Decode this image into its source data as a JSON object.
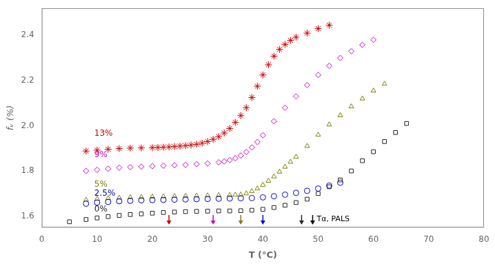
{
  "chart_data": {
    "type": "scatter",
    "xlabel": "T (°C)",
    "ylabel": "fᵥ (%)",
    "xlim": [
      0,
      80
    ],
    "ylim": [
      1.55,
      2.52
    ],
    "xticks": [
      0,
      10,
      20,
      30,
      40,
      50,
      60,
      70,
      80
    ],
    "yticks": [
      1.6,
      1.8,
      {
        "value": 2.0,
        "label": "2.0"
      },
      2.2,
      2.4
    ],
    "grid": false,
    "series": [
      {
        "name": "0%",
        "color": "#222222",
        "marker": "square",
        "x": [
          5,
          8,
          10,
          12,
          14,
          16,
          18,
          20,
          22,
          24,
          26,
          28,
          30,
          32,
          34,
          36,
          38,
          40,
          42,
          44,
          46,
          48,
          50,
          52,
          54,
          56,
          58,
          60,
          62,
          64,
          66
        ],
        "values": [
          1.575,
          1.585,
          1.592,
          1.598,
          1.603,
          1.607,
          1.61,
          1.613,
          1.616,
          1.618,
          1.62,
          1.621,
          1.622,
          1.623,
          1.623,
          1.624,
          1.626,
          1.63,
          1.638,
          1.648,
          1.66,
          1.675,
          1.7,
          1.73,
          1.76,
          1.8,
          1.845,
          1.885,
          1.93,
          1.97,
          2.01
        ]
      },
      {
        "name": "2.5%",
        "color": "#0000cc",
        "marker": "circle",
        "x": [
          8,
          10,
          12,
          14,
          16,
          18,
          20,
          22,
          24,
          26,
          28,
          30,
          32,
          34,
          36,
          38,
          40,
          42,
          44,
          46,
          48,
          50,
          52,
          54
        ],
        "values": [
          1.655,
          1.66,
          1.663,
          1.666,
          1.668,
          1.67,
          1.671,
          1.672,
          1.673,
          1.674,
          1.675,
          1.676,
          1.677,
          1.678,
          1.679,
          1.68,
          1.683,
          1.688,
          1.695,
          1.703,
          1.712,
          1.722,
          1.735,
          1.748
        ]
      },
      {
        "name": "5%",
        "color": "#7f7f00",
        "marker": "triangle",
        "x": [
          8,
          10,
          12,
          14,
          16,
          18,
          20,
          22,
          24,
          26,
          28,
          30,
          32,
          34,
          35,
          36,
          37,
          38,
          39,
          40,
          41,
          42,
          43,
          44,
          45,
          46,
          48,
          50,
          52,
          54,
          56,
          58,
          60,
          62
        ],
        "values": [
          1.672,
          1.676,
          1.679,
          1.681,
          1.683,
          1.684,
          1.686,
          1.687,
          1.688,
          1.689,
          1.69,
          1.691,
          1.692,
          1.693,
          1.694,
          1.695,
          1.7,
          1.71,
          1.722,
          1.738,
          1.756,
          1.775,
          1.796,
          1.818,
          1.84,
          1.862,
          1.91,
          1.96,
          2.005,
          2.046,
          2.085,
          2.12,
          2.155,
          2.185
        ]
      },
      {
        "name": "9%",
        "color": "#cc00cc",
        "marker": "diamond",
        "x": [
          8,
          10,
          12,
          14,
          16,
          18,
          20,
          22,
          24,
          26,
          28,
          30,
          32,
          33,
          34,
          35,
          36,
          37,
          38,
          39,
          40,
          42,
          44,
          46,
          48,
          50,
          52,
          54,
          56,
          58,
          60
        ],
        "values": [
          1.8,
          1.805,
          1.81,
          1.814,
          1.817,
          1.819,
          1.821,
          1.823,
          1.825,
          1.827,
          1.83,
          1.833,
          1.838,
          1.842,
          1.848,
          1.856,
          1.868,
          1.884,
          1.904,
          1.928,
          1.958,
          2.02,
          2.08,
          2.13,
          2.18,
          2.225,
          2.265,
          2.3,
          2.33,
          2.358,
          2.38
        ]
      },
      {
        "name": "13%",
        "color": "#cc0000",
        "marker": "star",
        "x": [
          8,
          10,
          12,
          14,
          16,
          18,
          20,
          21,
          22,
          23,
          24,
          25,
          26,
          27,
          28,
          29,
          30,
          31,
          32,
          33,
          34,
          35,
          36,
          37,
          38,
          39,
          40,
          41,
          42,
          43,
          44,
          45,
          46,
          48,
          50,
          52
        ],
        "values": [
          1.888,
          1.892,
          1.896,
          1.899,
          1.901,
          1.902,
          1.903,
          1.904,
          1.905,
          1.906,
          1.908,
          1.91,
          1.912,
          1.915,
          1.918,
          1.923,
          1.93,
          1.94,
          1.952,
          1.968,
          1.988,
          2.015,
          2.045,
          2.08,
          2.125,
          2.175,
          2.225,
          2.27,
          2.308,
          2.338,
          2.36,
          2.378,
          2.392,
          2.41,
          2.43,
          2.445
        ]
      }
    ],
    "arrows": [
      {
        "x": 23,
        "color": "#cc0000"
      },
      {
        "x": 31,
        "color": "#cc00cc"
      },
      {
        "x": 36,
        "color": "#7f7f00"
      },
      {
        "x": 40,
        "color": "#0000cc"
      },
      {
        "x": 47,
        "color": "#222222"
      },
      {
        "x": 49,
        "color": "#000000",
        "label": "Tα, PALS"
      }
    ],
    "annotations": [
      {
        "text": "13%",
        "x": 9.5,
        "y": 1.965,
        "color": "#cc0000"
      },
      {
        "text": "9%",
        "x": 9.5,
        "y": 1.87,
        "color": "#cc00cc"
      },
      {
        "text": "5%",
        "x": 9.5,
        "y": 1.738,
        "color": "#7f7f00"
      },
      {
        "text": "2.5%",
        "x": 9.5,
        "y": 1.7,
        "color": "#0000cc"
      },
      {
        "text": "0%",
        "x": 9.5,
        "y": 1.63,
        "color": "#222222"
      }
    ],
    "legend": false
  }
}
